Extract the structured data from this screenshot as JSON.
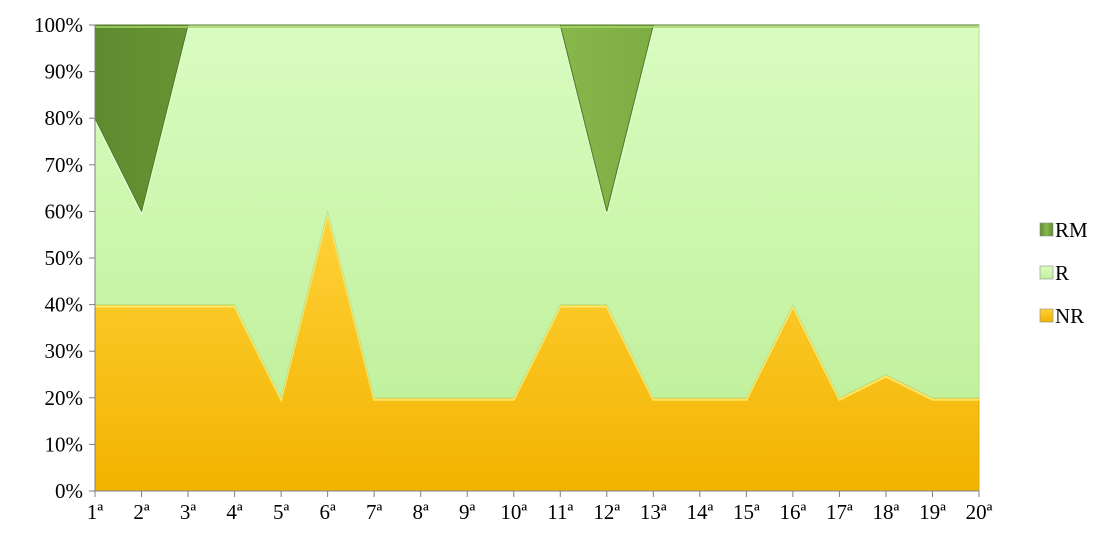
{
  "chart_data": {
    "type": "area",
    "stacked": "percent",
    "categories": [
      "1ª",
      "2ª",
      "3ª",
      "4ª",
      "5ª",
      "6ª",
      "7ª",
      "8ª",
      "9ª",
      "10ª",
      "11ª",
      "12ª",
      "13ª",
      "14ª",
      "15ª",
      "16ª",
      "17ª",
      "18ª",
      "19ª",
      "20ª"
    ],
    "series": [
      {
        "name": "NR",
        "color": "#f7bd0e",
        "values": [
          40,
          40,
          40,
          40,
          20,
          60,
          20,
          20,
          20,
          20,
          40,
          40,
          20,
          20,
          20,
          40,
          20,
          25,
          20,
          20
        ]
      },
      {
        "name": "R",
        "color": "#c9f5a9",
        "values": [
          40,
          20,
          60,
          60,
          80,
          40,
          80,
          80,
          80,
          80,
          60,
          20,
          80,
          80,
          80,
          60,
          80,
          75,
          80,
          80
        ]
      },
      {
        "name": "RM",
        "color": "#6f9a37",
        "values": [
          20,
          40,
          0,
          0,
          0,
          0,
          0,
          0,
          0,
          0,
          0,
          40,
          0,
          0,
          0,
          0,
          0,
          0,
          0,
          0
        ]
      }
    ],
    "yticks": [
      "0%",
      "10%",
      "20%",
      "30%",
      "40%",
      "50%",
      "60%",
      "70%",
      "80%",
      "90%",
      "100%"
    ],
    "ylim": [
      0,
      100
    ],
    "legend": {
      "position": "right",
      "entries": [
        "RM",
        "R",
        "NR"
      ]
    },
    "grid": false
  }
}
